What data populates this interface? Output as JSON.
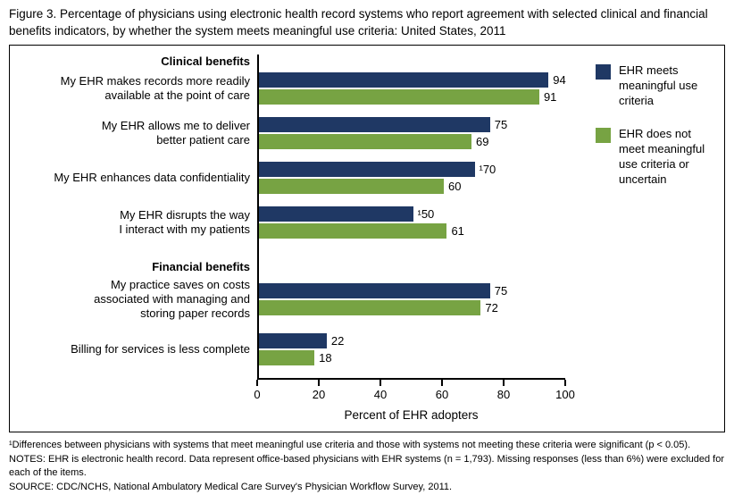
{
  "figure_title": "Figure 3. Percentage of physicians using electronic health record systems who report agreement with selected clinical and financial benefits indicators, by whether the system meets meaningful use criteria: United States, 2011",
  "legend": [
    {
      "label": "EHR meets meaningful use criteria",
      "display": "EHR meets\nmeaningful use\ncriteria",
      "color": "#1f3864"
    },
    {
      "label": "EHR does not meet meaningful use criteria or uncertain",
      "display": "EHR does not\nmeet meaningful\nuse criteria or\nuncertain",
      "color": "#77a343"
    }
  ],
  "chart_data": {
    "type": "bar",
    "orientation": "horizontal",
    "title": "Percentage of physicians using electronic health record systems who report agreement with selected clinical and financial benefits indicators, by whether the system meets meaningful use criteria: United States, 2011",
    "xlabel": "Percent of EHR adopters",
    "xlim": [
      0,
      100
    ],
    "xticks": [
      0,
      20,
      40,
      60,
      80,
      100
    ],
    "grid": false,
    "legend_position": "top-right",
    "groups": [
      {
        "header": "Clinical benefits",
        "categories": [
          "My EHR makes records more readily\navailable at the point of care",
          "My EHR allows me to deliver\nbetter patient care",
          "My EHR enhances data confidentiality",
          "My EHR disrupts the way\nI interact with my patients"
        ],
        "series": [
          {
            "name": "EHR meets meaningful use criteria",
            "color": "#1f3864",
            "values": [
              94,
              75,
              70,
              50
            ],
            "value_labels": [
              "94",
              "75",
              "¹70",
              "¹50"
            ]
          },
          {
            "name": "EHR does not meet meaningful use criteria or uncertain",
            "color": "#77a343",
            "values": [
              91,
              69,
              60,
              61
            ],
            "value_labels": [
              "91",
              "69",
              "60",
              "61"
            ]
          }
        ]
      },
      {
        "header": "Financial benefits",
        "categories": [
          "My practice saves on costs\nassociated with managing and\nstoring paper records",
          "Billing for services is less complete"
        ],
        "series": [
          {
            "name": "EHR meets meaningful use criteria",
            "color": "#1f3864",
            "values": [
              75,
              22
            ],
            "value_labels": [
              "75",
              "22"
            ]
          },
          {
            "name": "EHR does not meet meaningful use criteria or uncertain",
            "color": "#77a343",
            "values": [
              72,
              18
            ],
            "value_labels": [
              "72",
              "18"
            ]
          }
        ]
      }
    ]
  },
  "footnotes": [
    "¹Differences between physicians with systems that meet meaningful use criteria and those with systems not meeting these criteria were significant (p < 0.05).",
    "NOTES: EHR is electronic health record. Data represent office-based physicians with EHR systems (n = 1,793). Missing responses (less than 6%) were excluded for each of the items.",
    "SOURCE: CDC/NCHS, National Ambulatory Medical Care Survey's Physician Workflow Survey, 2011."
  ]
}
